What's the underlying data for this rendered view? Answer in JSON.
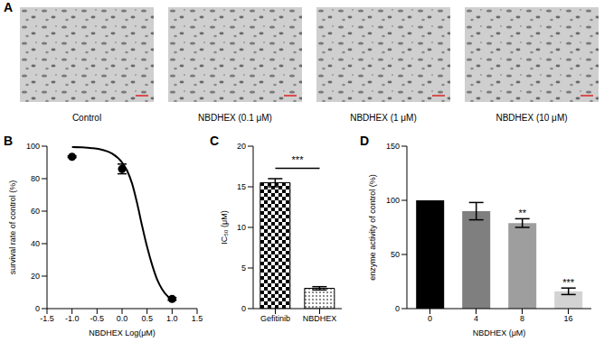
{
  "chart_data": [
    {
      "type": "image",
      "title": "A",
      "categories": [
        "Control",
        "NBDHEX (0.1 μM)",
        "NBDHEX (1 μM)",
        "NBDHEX (10 μM)"
      ]
    },
    {
      "type": "scatter",
      "title": "B",
      "x_label": "NBDHEX Log(μM)",
      "y_label": "survival rate of control (%)",
      "xlim": [
        -1.5,
        1.5
      ],
      "xticks": [
        -1.5,
        {
          "value": -1,
          "label": "-1.0"
        },
        -0.5,
        {
          "value": 0,
          "label": "0.0"
        },
        0.5,
        {
          "value": 1,
          "label": "1.0"
        },
        1.5
      ],
      "ylim": [
        0,
        100
      ],
      "yticks": [
        0,
        20,
        40,
        60,
        80,
        100
      ],
      "series": [
        {
          "type": "scatter",
          "color": "#000000",
          "marker": "circle",
          "x": [
            -1,
            0,
            1
          ],
          "values": [
            93.5,
            86,
            6
          ],
          "errors": [
            0.5,
            3,
            0.8
          ]
        },
        {
          "type": "line",
          "color": "#000000",
          "line_style": "solid",
          "x": [
            -1,
            -0.8,
            -0.6,
            -0.4,
            -0.2,
            0,
            0.1,
            0.2,
            0.3,
            0.4,
            0.5,
            0.6,
            0.7,
            0.8,
            0.9,
            1
          ],
          "values": [
            99.5,
            99.3,
            98.8,
            97.8,
            95.5,
            90,
            85,
            77,
            65,
            51,
            38,
            27,
            18,
            12,
            8,
            5.5
          ]
        }
      ]
    },
    {
      "type": "bar",
      "title": "C",
      "y_label": "IC₅₀ (μM)",
      "categories": [
        "Gefitinib",
        "NBDHEX"
      ],
      "values": [
        15.5,
        2.5
      ],
      "errors": [
        0.5,
        0.2
      ],
      "ylim": [
        0,
        20
      ],
      "yticks": [
        0,
        5,
        10,
        15,
        20
      ],
      "annotations": [
        "***"
      ]
    },
    {
      "type": "bar",
      "title": "D",
      "x_label": "NBDHEX (μM)",
      "y_label": "enzyme activity of control (%)",
      "categories": [
        "0",
        "4",
        "8",
        "16"
      ],
      "values": [
        100,
        90,
        79,
        16
      ],
      "errors": [
        0,
        8,
        4,
        3
      ],
      "colors": [
        "#000000",
        "#7f7f7f",
        "#9e9e9e",
        "#d3d3d3"
      ],
      "significance": [
        null,
        null,
        "**",
        "***"
      ],
      "ylim": [
        0,
        150
      ],
      "yticks": [
        0,
        50,
        100,
        150
      ]
    }
  ]
}
